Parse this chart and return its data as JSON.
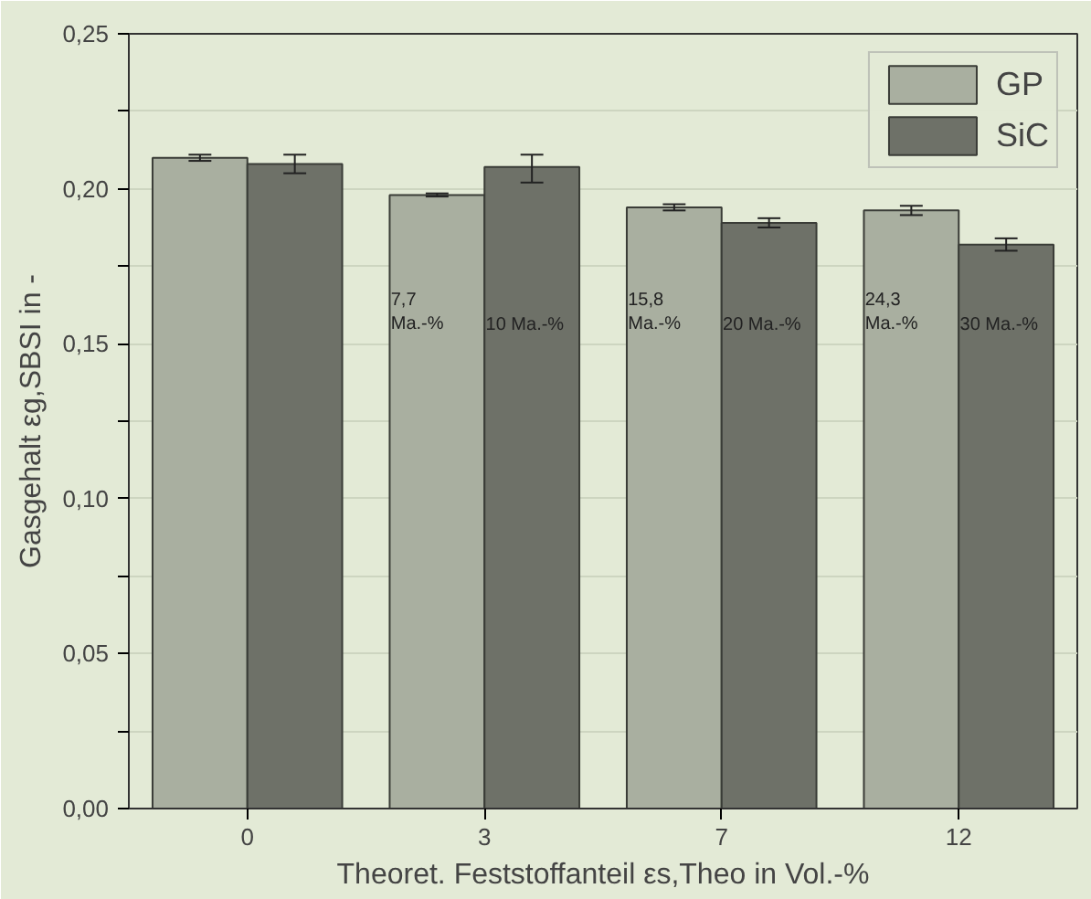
{
  "chart_data": {
    "type": "bar",
    "xlabel": "Theoret. Feststoffanteil εs,Theo in Vol.-%",
    "ylabel": "Gasgehalt εg,SBSI in -",
    "categories": [
      "0",
      "3",
      "7",
      "12"
    ],
    "series": [
      {
        "name": "GP",
        "color": "#a9afa0",
        "values": [
          0.21,
          0.198,
          0.194,
          0.193
        ],
        "errors": [
          0.001,
          0.0005,
          0.001,
          0.0015
        ]
      },
      {
        "name": "SiC",
        "color": "#6e7168",
        "values": [
          0.208,
          0.207,
          0.189,
          0.182
        ],
        "errors": [
          0.003,
          [
            0.202,
            0.211
          ],
          0.0015,
          0.002
        ]
      }
    ],
    "ylim": [
      0,
      0.25
    ],
    "yticks": [
      {
        "value": 0,
        "label": "0,00"
      },
      {
        "value": 0.025,
        "label": null
      },
      {
        "value": 0.05,
        "label": "0,05"
      },
      {
        "value": 0.075,
        "label": null
      },
      {
        "value": 0.1,
        "label": "0,10"
      },
      {
        "value": 0.125,
        "label": null
      },
      {
        "value": 0.15,
        "label": "0,15"
      },
      {
        "value": 0.175,
        "label": null
      },
      {
        "value": 0.2,
        "label": "0,20"
      },
      {
        "value": 0.225,
        "label": null
      },
      {
        "value": 0.25,
        "label": "0,25"
      }
    ],
    "grid": "y",
    "legend": "top right",
    "annotations": [
      {
        "text": "7,7\nMa.-%",
        "x": "3",
        "y": 0.16
      },
      {
        "text": "10 Ma.-%",
        "x": "3",
        "y": 0.156
      },
      {
        "text": "15,8\nMa.-%",
        "x": "7",
        "y": 0.16
      },
      {
        "text": "20 Ma.-%",
        "x": "7",
        "y": 0.156
      },
      {
        "text": "24,3\nMa.-%",
        "x": "12",
        "y": 0.16
      },
      {
        "text": "30 Ma.-%",
        "x": "12",
        "y": 0.156
      }
    ]
  }
}
